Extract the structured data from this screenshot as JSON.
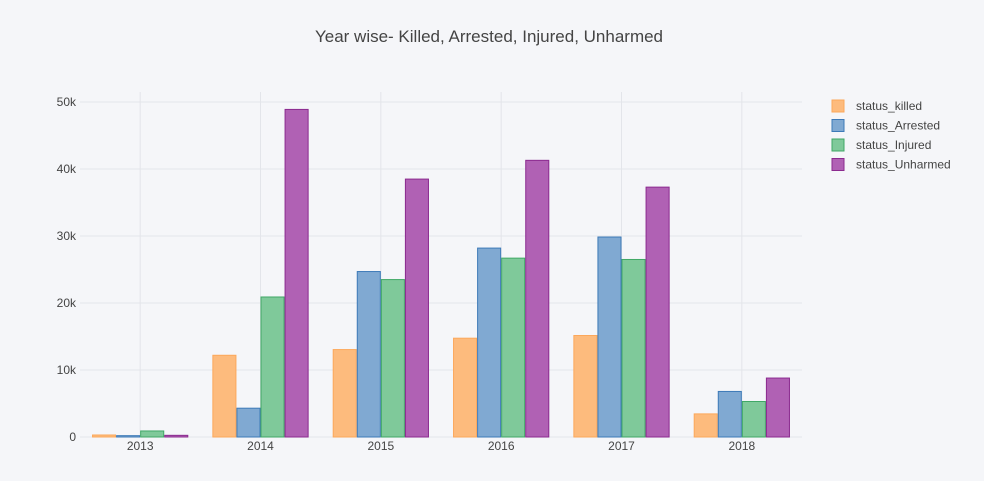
{
  "chart_data": {
    "type": "bar",
    "title": "Year wise- Killed, Arrested, Injured, Unharmed",
    "xlabel": "",
    "ylabel": "",
    "categories": [
      "2013",
      "2014",
      "2015",
      "2016",
      "2017",
      "2018"
    ],
    "ylim": [
      0,
      51500
    ],
    "yticks": [
      0,
      10000,
      20000,
      30000,
      40000,
      50000
    ],
    "ytick_labels": [
      "0",
      "10k",
      "20k",
      "30k",
      "40k",
      "50k"
    ],
    "grid": true,
    "legend_position": "top-right",
    "series": [
      {
        "name": "status_killed",
        "color": "#fdbb7d",
        "stroke": "#fca85b",
        "values": [
          300,
          12200,
          13050,
          14750,
          15150,
          3450
        ]
      },
      {
        "name": "status_Arrested",
        "color": "#80a9d2",
        "stroke": "#3d7ab8",
        "values": [
          200,
          4300,
          24700,
          28200,
          29850,
          6800
        ]
      },
      {
        "name": "status_Injured",
        "color": "#7fc99a",
        "stroke": "#40a866",
        "values": [
          900,
          20900,
          23500,
          26700,
          26500,
          5300
        ]
      },
      {
        "name": "status_Unharmed",
        "color": "#b061b4",
        "stroke": "#8b2a8f",
        "values": [
          250,
          48900,
          38500,
          41300,
          37300,
          8800
        ]
      }
    ]
  }
}
